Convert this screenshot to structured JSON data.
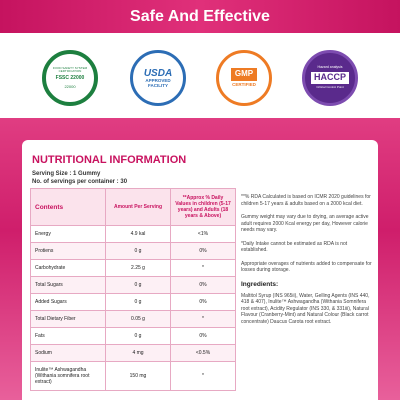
{
  "header": {
    "title": "Safe And Effective"
  },
  "badges": [
    {
      "top": "FOOD SAFETY SYSTEM CERTIFICATION",
      "main": "FSSC 22000",
      "bottom": "22000"
    },
    {
      "top": "USDA",
      "main": "APPROVED FACILITY"
    },
    {
      "top": "GMP",
      "main": "CERTIFIED"
    },
    {
      "top": "Hazard analysis",
      "main": "HACCP",
      "bottom": "Critical Control Point"
    }
  ],
  "nutrition": {
    "title": "NUTRITIONAL INFORMATION",
    "serving_size": "Serving Size : 1 Gummy",
    "servings": "No. of servings per container : 30",
    "table": {
      "header": [
        "Contents",
        "Amount Per Serving",
        "**Approx % Daily Values in children (5-17 years) and Adults (18 years & Above)"
      ],
      "rows": [
        [
          "Energy",
          "4.9 kal",
          "<1%"
        ],
        [
          "Protiens",
          "0 g",
          "0%"
        ],
        [
          "Carbohydrate",
          "2.25 g",
          "*"
        ],
        [
          "Total Sugars",
          "0 g",
          "0%"
        ],
        [
          "Added Sugars",
          "0 g",
          "0%"
        ],
        [
          "Total Dietary Fiber",
          "0.05 g",
          "*"
        ],
        [
          "Fats",
          "0 g",
          "0%"
        ],
        [
          "Sodium",
          "4 mg",
          "<0.5%"
        ],
        [
          "Inulite™ Ashwagandha (Withania somnifera root extract)",
          "150 mg",
          "*"
        ]
      ]
    },
    "notes": [
      "**% RDA Calculated is based on ICMR 2020 guidelines for children 5-17 years & adults based on a 2000 kcal diet.",
      "Gummy weight may vary due to drying, an average active adult requires 2000 Kcal energy per day, However calorie needs may vary.",
      "*Daily Intake cannot be estimated as RDA is not established.",
      "Appropriate overages of nutrients added to compensate for losses during storage."
    ],
    "ingredients_title": "Ingredients:",
    "ingredients": "Maltitol Syrup (INS 965ii), Water, Gelling Agents (INS 440, 418 & 407), Inulite™ Ashwagandha (Withania Somnifera root extract), Acidity Regulator (INS 330, & 331iii), Natural Flavour (Cranberry-Mint) and Natural Colour (Black carrot concentrate) Daucus Carota root extract."
  }
}
